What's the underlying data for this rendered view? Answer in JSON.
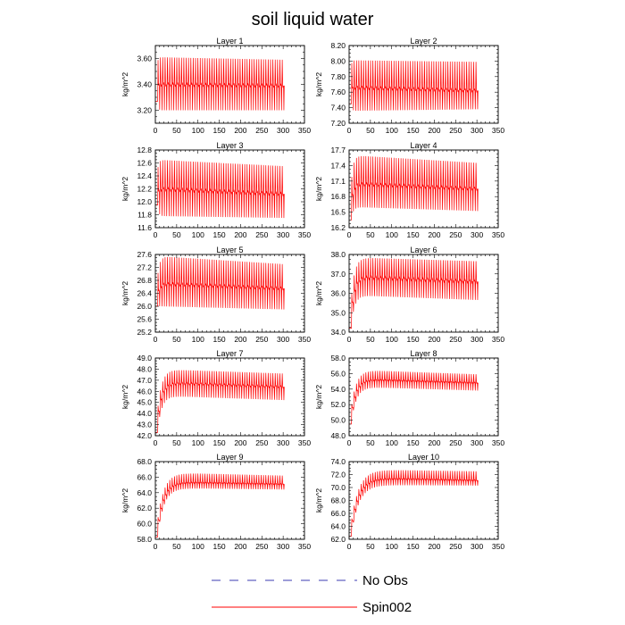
{
  "figure": {
    "title": "soil liquid water"
  },
  "colors": {
    "spin": "#ff0000",
    "noobs": "#3b3bb0",
    "axis": "#000000"
  },
  "legend": {
    "entries": [
      {
        "label": "No Obs",
        "style": "dashed",
        "color": "#3b3bb0"
      },
      {
        "label": "Spin002",
        "style": "solid",
        "color": "#ff0000"
      }
    ]
  },
  "chart_data": [
    {
      "type": "line",
      "title": "Layer 1",
      "ylabel": "kg/m^2",
      "xlim": [
        0,
        350
      ],
      "ylim": [
        3.1,
        3.7
      ],
      "xticks": [
        0,
        50,
        100,
        150,
        200,
        250,
        300,
        350
      ],
      "yticks": [
        "3.20",
        "3.40",
        "3.60"
      ],
      "series": [
        {
          "name": "No Obs",
          "values": []
        },
        {
          "name": "Spin002",
          "x_range": [
            0,
            305
          ],
          "period": 5.5,
          "start": 3.27,
          "spinup": 2,
          "upper_start": 3.61,
          "upper_end": 3.59,
          "lower_start": 3.2,
          "lower_end": 3.2,
          "mid_start": 3.4,
          "mid_end": 3.39
        }
      ]
    },
    {
      "type": "line",
      "title": "Layer 2",
      "ylabel": "kg/m^2",
      "xlim": [
        0,
        350
      ],
      "ylim": [
        7.2,
        8.2
      ],
      "xticks": [
        0,
        50,
        100,
        150,
        200,
        250,
        300,
        350
      ],
      "yticks": [
        "7.20",
        "7.40",
        "7.60",
        "7.80",
        "8.00",
        "8.20"
      ],
      "series": [
        {
          "name": "No Obs",
          "values": []
        },
        {
          "name": "Spin002",
          "x_range": [
            0,
            305
          ],
          "period": 5.5,
          "start": 7.45,
          "spinup": 2,
          "upper_start": 8.01,
          "upper_end": 7.99,
          "lower_start": 7.36,
          "lower_end": 7.38,
          "mid_start": 7.66,
          "mid_end": 7.62
        }
      ]
    },
    {
      "type": "line",
      "title": "Layer 3",
      "ylabel": "kg/m^2",
      "xlim": [
        0,
        350
      ],
      "ylim": [
        11.6,
        12.8
      ],
      "xticks": [
        0,
        50,
        100,
        150,
        200,
        250,
        300,
        350
      ],
      "yticks": [
        "11.6",
        "11.8",
        "12.0",
        "12.2",
        "12.4",
        "12.6",
        "12.8"
      ],
      "series": [
        {
          "name": "No Obs",
          "values": []
        },
        {
          "name": "Spin002",
          "x_range": [
            0,
            305
          ],
          "period": 5.5,
          "start": 11.95,
          "spinup": 3,
          "upper_start": 12.65,
          "upper_end": 12.55,
          "lower_start": 11.78,
          "lower_end": 11.75,
          "mid_start": 12.2,
          "mid_end": 12.12
        }
      ]
    },
    {
      "type": "line",
      "title": "Layer 4",
      "ylabel": "kg/m^2",
      "xlim": [
        0,
        350
      ],
      "ylim": [
        16.2,
        17.7
      ],
      "xticks": [
        0,
        50,
        100,
        150,
        200,
        250,
        300,
        350
      ],
      "yticks": [
        "16.2",
        "16.5",
        "16.8",
        "17.1",
        "17.4",
        "17.7"
      ],
      "series": [
        {
          "name": "No Obs",
          "values": []
        },
        {
          "name": "Spin002",
          "x_range": [
            0,
            305
          ],
          "period": 5.5,
          "start": 16.35,
          "spinup": 5,
          "upper_start": 17.6,
          "upper_end": 17.45,
          "lower_start": 16.6,
          "lower_end": 16.52,
          "mid_start": 17.05,
          "mid_end": 16.95
        }
      ]
    },
    {
      "type": "line",
      "title": "Layer 5",
      "ylabel": "kg/m^2",
      "xlim": [
        0,
        350
      ],
      "ylim": [
        25.2,
        27.6
      ],
      "xticks": [
        0,
        50,
        100,
        150,
        200,
        250,
        300,
        350
      ],
      "yticks": [
        "25.2",
        "25.6",
        "26.0",
        "26.4",
        "26.8",
        "27.2",
        "27.6"
      ],
      "series": [
        {
          "name": "No Obs",
          "values": []
        },
        {
          "name": "Spin002",
          "x_range": [
            0,
            305
          ],
          "period": 5.5,
          "start": 26.0,
          "spinup": 5,
          "upper_start": 27.55,
          "upper_end": 27.3,
          "lower_start": 26.0,
          "lower_end": 25.9,
          "mid_start": 26.7,
          "mid_end": 26.55
        }
      ]
    },
    {
      "type": "line",
      "title": "Layer 6",
      "ylabel": "kg/m^2",
      "xlim": [
        0,
        350
      ],
      "ylim": [
        34.0,
        38.0
      ],
      "xticks": [
        0,
        50,
        100,
        150,
        200,
        250,
        300,
        350
      ],
      "yticks": [
        "34.0",
        "35.0",
        "36.0",
        "37.0",
        "38.0"
      ],
      "series": [
        {
          "name": "No Obs",
          "values": []
        },
        {
          "name": "Spin002",
          "x_range": [
            0,
            305
          ],
          "period": 5.5,
          "start": 34.2,
          "spinup": 8,
          "upper_start": 37.85,
          "upper_end": 37.65,
          "lower_start": 35.9,
          "lower_end": 35.65,
          "mid_start": 36.85,
          "mid_end": 36.6
        }
      ]
    },
    {
      "type": "line",
      "title": "Layer 7",
      "ylabel": "kg/m^2",
      "xlim": [
        0,
        350
      ],
      "ylim": [
        42.0,
        49.0
      ],
      "xticks": [
        0,
        50,
        100,
        150,
        200,
        250,
        300,
        350
      ],
      "yticks": [
        "42.0",
        "43.0",
        "44.0",
        "45.0",
        "46.0",
        "47.0",
        "48.0",
        "49.0"
      ],
      "series": [
        {
          "name": "No Obs",
          "values": []
        },
        {
          "name": "Spin002",
          "x_range": [
            0,
            305
          ],
          "period": 5.5,
          "start": 42.3,
          "spinup": 10,
          "upper_start": 48.0,
          "upper_end": 47.6,
          "lower_start": 45.6,
          "lower_end": 45.2,
          "mid_start": 46.8,
          "mid_end": 46.4
        }
      ]
    },
    {
      "type": "line",
      "title": "Layer 8",
      "ylabel": "kg/m^2",
      "xlim": [
        0,
        350
      ],
      "ylim": [
        48.0,
        58.0
      ],
      "xticks": [
        0,
        50,
        100,
        150,
        200,
        250,
        300,
        350
      ],
      "yticks": [
        "48.0",
        "50.0",
        "52.0",
        "54.0",
        "56.0",
        "58.0"
      ],
      "series": [
        {
          "name": "No Obs",
          "values": []
        },
        {
          "name": "Spin002",
          "x_range": [
            0,
            305
          ],
          "period": 5.5,
          "start": 49.5,
          "spinup": 12,
          "upper_start": 56.5,
          "upper_end": 55.9,
          "lower_start": 54.3,
          "lower_end": 53.8,
          "mid_start": 55.3,
          "mid_end": 54.8
        }
      ]
    },
    {
      "type": "line",
      "title": "Layer 9",
      "ylabel": "kg/m^2",
      "xlim": [
        0,
        350
      ],
      "ylim": [
        58.0,
        68.0
      ],
      "xticks": [
        0,
        50,
        100,
        150,
        200,
        250,
        300,
        350
      ],
      "yticks": [
        "58.0",
        "60.0",
        "62.0",
        "64.0",
        "66.0",
        "68.0"
      ],
      "series": [
        {
          "name": "No Obs",
          "values": []
        },
        {
          "name": "Spin002",
          "x_range": [
            0,
            305
          ],
          "period": 5.5,
          "start": 58.3,
          "spinup": 15,
          "upper_start": 66.6,
          "upper_end": 66.2,
          "lower_start": 64.6,
          "lower_end": 64.4,
          "mid_start": 65.4,
          "mid_end": 65.1
        }
      ]
    },
    {
      "type": "line",
      "title": "Layer 10",
      "ylabel": "kg/m^2",
      "xlim": [
        0,
        350
      ],
      "ylim": [
        62.0,
        74.0
      ],
      "xticks": [
        0,
        50,
        100,
        150,
        200,
        250,
        300,
        350
      ],
      "yticks": [
        "62.0",
        "64.0",
        "66.0",
        "68.0",
        "70.0",
        "72.0",
        "74.0"
      ],
      "series": [
        {
          "name": "No Obs",
          "values": []
        },
        {
          "name": "Spin002",
          "x_range": [
            0,
            305
          ],
          "period": 5.5,
          "start": 62.5,
          "spinup": 18,
          "upper_start": 72.8,
          "upper_end": 72.5,
          "lower_start": 70.4,
          "lower_end": 70.3,
          "mid_start": 71.5,
          "mid_end": 71.1
        }
      ]
    }
  ]
}
